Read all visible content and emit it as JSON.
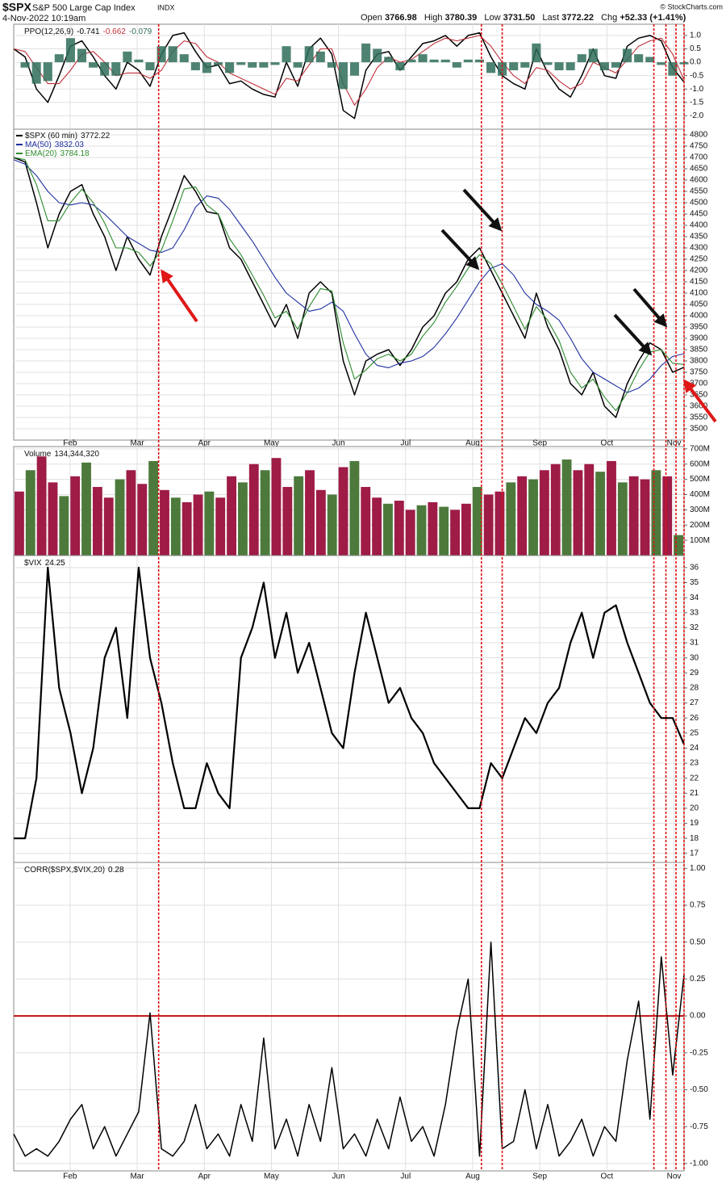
{
  "header": {
    "symbol": "$SPX",
    "name": "S&P 500 Large Cap Index",
    "exchange": "INDX",
    "datetime": "4-Nov-2022 10:19am",
    "quote": [
      {
        "label": "Open",
        "value": "3766.98"
      },
      {
        "label": "High",
        "value": "3780.39"
      },
      {
        "label": "Low",
        "value": "3731.50"
      },
      {
        "label": "Last",
        "value": "3772.22"
      },
      {
        "label": "Chg",
        "value": "+52.33 (+1.41%)"
      }
    ],
    "credit": "© StockCharts.com"
  },
  "markers": {
    "vlines": [
      3.32,
      8.13,
      8.44,
      10.7,
      10.88,
      11.03,
      11.15
    ],
    "color": "#e01010"
  },
  "chart_data": [
    {
      "type": "line",
      "title": "PPO(12,26,9)",
      "legend": "inline",
      "xlim": [
        1.16,
        11.15
      ],
      "ylim": [
        -2.5,
        1.42
      ],
      "yticks": [
        {
          "value": 1,
          "label": "1.0"
        },
        0.5,
        {
          "value": 0,
          "label": "0.0"
        },
        -0.5,
        {
          "value": -1,
          "label": "-1.0"
        },
        -1.5,
        {
          "value": -2,
          "label": "-2.0"
        }
      ],
      "series": [
        {
          "name": "PPO",
          "kind": "line",
          "color": "#000000",
          "values": [
            0.5,
            0.2,
            -1.0,
            -1.5,
            -0.5,
            0.6,
            0.8,
            0.2,
            -0.5,
            -1.0,
            0.0,
            -0.3,
            -0.9,
            0.3,
            1.0,
            1.1,
            0.4,
            -0.2,
            -0.1,
            -0.8,
            -0.7,
            -1.0,
            -1.2,
            -1.3,
            0.0,
            -0.9,
            0.5,
            0.9,
            0.3,
            -1.8,
            -2.1,
            -0.3,
            0.3,
            0.4,
            -0.3,
            0.2,
            0.7,
            0.8,
            1.0,
            0.6,
            1.0,
            1.1,
            0.2,
            -0.5,
            -0.8,
            -1.0,
            0.5,
            -0.4,
            -1.0,
            -1.3,
            -0.5,
            0.5,
            -0.5,
            -0.6,
            0.6,
            0.9,
            1.0,
            0.8,
            -0.2,
            -0.741
          ]
        },
        {
          "name": "Signal",
          "kind": "line",
          "color": "#c0303a",
          "values": [
            0.5,
            0.4,
            -0.2,
            -0.8,
            -0.8,
            -0.3,
            0.3,
            0.4,
            0.0,
            -0.5,
            -0.4,
            -0.4,
            -0.6,
            -0.3,
            0.4,
            0.8,
            0.7,
            0.2,
            0.0,
            -0.4,
            -0.6,
            -0.8,
            -1.0,
            -1.2,
            -0.6,
            -0.7,
            -0.1,
            0.5,
            0.5,
            -0.8,
            -1.6,
            -1.0,
            -0.2,
            0.2,
            0.0,
            0.1,
            0.4,
            0.7,
            0.9,
            0.8,
            0.9,
            1.0,
            0.6,
            0.0,
            -0.5,
            -0.8,
            -0.2,
            -0.3,
            -0.7,
            -1.0,
            -0.8,
            0.0,
            -0.2,
            -0.4,
            0.1,
            0.6,
            0.8,
            0.9,
            0.3,
            -0.662
          ]
        },
        {
          "name": "Histogram",
          "kind": "histogram",
          "color": "#2f6d5a",
          "values": [
            0.0,
            -0.2,
            -0.8,
            -0.7,
            0.3,
            0.9,
            0.5,
            -0.2,
            -0.5,
            -0.5,
            0.4,
            0.1,
            -0.3,
            0.6,
            0.6,
            0.3,
            -0.3,
            -0.4,
            -0.1,
            -0.4,
            -0.1,
            -0.2,
            -0.2,
            -0.1,
            0.6,
            -0.2,
            0.6,
            0.4,
            -0.2,
            -1.0,
            -0.5,
            0.7,
            0.5,
            0.2,
            -0.3,
            0.1,
            0.3,
            0.1,
            0.1,
            -0.2,
            0.1,
            0.1,
            -0.4,
            -0.5,
            -0.3,
            -0.2,
            0.7,
            -0.1,
            -0.3,
            -0.3,
            0.3,
            0.5,
            -0.3,
            -0.2,
            0.5,
            0.3,
            0.2,
            -0.1,
            -0.5,
            -0.079
          ]
        }
      ]
    },
    {
      "type": "line",
      "legend": "stacked",
      "xlim": [
        1.16,
        11.15
      ],
      "ylim": [
        3450,
        4825
      ],
      "xticks": [
        {
          "value": 2,
          "label": "Feb"
        },
        {
          "value": 3,
          "label": "Mar"
        },
        {
          "value": 4,
          "label": "Apr"
        },
        {
          "value": 5,
          "label": "May"
        },
        {
          "value": 6,
          "label": "Jun"
        },
        {
          "value": 7,
          "label": "Jul"
        },
        {
          "value": 8,
          "label": "Aug"
        },
        {
          "value": 9,
          "label": "Sep"
        },
        {
          "value": 10,
          "label": "Oct"
        },
        {
          "value": 11,
          "label": "Nov"
        }
      ],
      "yticks": [
        3500,
        3550,
        3600,
        3650,
        3700,
        3750,
        3800,
        3850,
        3900,
        3950,
        4000,
        4050,
        4100,
        4150,
        4200,
        4250,
        4300,
        4350,
        4400,
        4450,
        4500,
        4550,
        4600,
        4650,
        4700,
        4750,
        4800
      ],
      "series": [
        {
          "name": "$SPX (60 min)",
          "kind": "line",
          "color": "#000000",
          "values": [
            4700,
            4680,
            4500,
            4300,
            4450,
            4550,
            4580,
            4450,
            4350,
            4200,
            4350,
            4250,
            4180,
            4350,
            4480,
            4620,
            4550,
            4460,
            4450,
            4300,
            4250,
            4150,
            4050,
            3950,
            4050,
            3900,
            4100,
            4150,
            4100,
            3800,
            3650,
            3800,
            3830,
            3850,
            3780,
            3850,
            3950,
            4000,
            4100,
            4150,
            4250,
            4300,
            4200,
            4100,
            4000,
            3900,
            4100,
            3950,
            3850,
            3700,
            3650,
            3750,
            3600,
            3550,
            3700,
            3800,
            3880,
            3850,
            3750,
            3772.22
          ]
        },
        {
          "name": "MA(50)",
          "kind": "line",
          "color": "#1f2fa0",
          "values": [
            4690,
            4670,
            4620,
            4550,
            4500,
            4490,
            4500,
            4490,
            4450,
            4400,
            4350,
            4320,
            4290,
            4280,
            4300,
            4380,
            4480,
            4530,
            4520,
            4470,
            4400,
            4330,
            4250,
            4170,
            4100,
            4060,
            4020,
            4030,
            4060,
            4020,
            3920,
            3830,
            3780,
            3770,
            3790,
            3800,
            3820,
            3860,
            3920,
            3990,
            4070,
            4150,
            4210,
            4230,
            4180,
            4100,
            4050,
            4020,
            3980,
            3900,
            3810,
            3750,
            3720,
            3690,
            3660,
            3680,
            3720,
            3780,
            3820,
            3832.03
          ]
        },
        {
          "name": "EMA(20)",
          "kind": "line",
          "color": "#2e8b2e",
          "values": [
            4700,
            4690,
            4580,
            4420,
            4420,
            4500,
            4560,
            4500,
            4410,
            4300,
            4300,
            4280,
            4220,
            4290,
            4420,
            4560,
            4570,
            4490,
            4450,
            4340,
            4270,
            4180,
            4090,
            3990,
            4020,
            3940,
            4040,
            4120,
            4110,
            3880,
            3720,
            3760,
            3810,
            3830,
            3800,
            3830,
            3910,
            3970,
            4060,
            4130,
            4210,
            4270,
            4230,
            4140,
            4040,
            3940,
            4040,
            3980,
            3890,
            3750,
            3680,
            3720,
            3640,
            3580,
            3660,
            3760,
            3840,
            3850,
            3790,
            3784.18
          ]
        }
      ]
    },
    {
      "type": "bar",
      "title": "Volume",
      "legend": "inline",
      "xlim": [
        1.16,
        11.15
      ],
      "ylim": [
        0,
        715000000
      ],
      "yticks": [
        {
          "value": 100000000,
          "label": "100M"
        },
        {
          "value": 200000000,
          "label": "200M"
        },
        {
          "value": 300000000,
          "label": "300M"
        },
        {
          "value": 400000000,
          "label": "400M"
        },
        {
          "value": 500000000,
          "label": "500M"
        },
        {
          "value": 600000000,
          "label": "600M"
        },
        {
          "value": 700000000,
          "label": "700M"
        }
      ],
      "values": [
        420000000,
        560000000,
        650000000,
        480000000,
        390000000,
        520000000,
        610000000,
        450000000,
        380000000,
        500000000,
        560000000,
        470000000,
        620000000,
        430000000,
        380000000,
        350000000,
        400000000,
        420000000,
        380000000,
        520000000,
        480000000,
        600000000,
        560000000,
        640000000,
        450000000,
        520000000,
        560000000,
        430000000,
        400000000,
        580000000,
        620000000,
        450000000,
        380000000,
        340000000,
        360000000,
        300000000,
        330000000,
        350000000,
        320000000,
        300000000,
        340000000,
        450000000,
        400000000,
        420000000,
        480000000,
        520000000,
        500000000,
        560000000,
        600000000,
        630000000,
        560000000,
        600000000,
        550000000,
        620000000,
        480000000,
        520000000,
        500000000,
        560000000,
        520000000,
        134344320
      ],
      "value_labels": {
        "59": "134,344,320"
      },
      "colors": [
        "#9e1c46",
        "#4d7a3c",
        "#9e1c46",
        "#9e1c46",
        "#4d7a3c",
        "#9e1c46",
        "#4d7a3c",
        "#9e1c46",
        "#9e1c46",
        "#4d7a3c",
        "#9e1c46",
        "#9e1c46",
        "#4d7a3c",
        "#9e1c46",
        "#4d7a3c",
        "#9e1c46",
        "#9e1c46",
        "#4d7a3c",
        "#9e1c46",
        "#9e1c46",
        "#4d7a3c",
        "#9e1c46",
        "#4d7a3c",
        "#9e1c46",
        "#9e1c46",
        "#4d7a3c",
        "#9e1c46",
        "#9e1c46",
        "#4d7a3c",
        "#9e1c46",
        "#4d7a3c",
        "#9e1c46",
        "#9e1c46",
        "#4d7a3c",
        "#9e1c46",
        "#9e1c46",
        "#4d7a3c",
        "#9e1c46",
        "#4d7a3c",
        "#9e1c46",
        "#9e1c46",
        "#4d7a3c",
        "#9e1c46",
        "#9e1c46",
        "#4d7a3c",
        "#9e1c46",
        "#4d7a3c",
        "#9e1c46",
        "#9e1c46",
        "#4d7a3c",
        "#9e1c46",
        "#9e1c46",
        "#4d7a3c",
        "#9e1c46",
        "#4d7a3c",
        "#9e1c46",
        "#9e1c46",
        "#4d7a3c",
        "#9e1c46",
        "#4d7a3c"
      ]
    },
    {
      "type": "line",
      "title": "$VIX",
      "legend": "inline",
      "xlim": [
        1.16,
        11.15
      ],
      "ylim": [
        16.4,
        36.8
      ],
      "yticks": [
        17,
        18,
        19,
        20,
        21,
        22,
        23,
        24,
        25,
        26,
        27,
        28,
        29,
        30,
        31,
        32,
        33,
        34,
        35,
        36
      ],
      "series": [
        {
          "name": "$VIX",
          "kind": "line",
          "color": "#000000",
          "values": [
            18,
            18,
            22,
            36,
            28,
            25,
            21,
            24,
            30,
            32,
            26,
            36,
            30,
            27,
            23,
            20,
            20,
            23,
            21,
            20,
            30,
            32,
            35,
            30,
            33,
            29,
            31,
            28,
            25,
            24,
            29,
            33,
            30,
            27,
            28,
            26,
            25,
            23,
            22,
            21,
            20,
            20,
            23,
            22,
            24,
            26,
            25,
            27,
            28,
            31,
            33,
            30,
            33,
            33.5,
            31,
            29,
            27,
            26,
            26,
            24.25
          ]
        }
      ]
    },
    {
      "type": "line",
      "title": "CORR($SPX,$VIX,20)",
      "legend": "inline",
      "xlim": [
        1.16,
        11.15
      ],
      "ylim": [
        -1.05,
        1.04
      ],
      "xticks": [
        {
          "value": 2,
          "label": "Feb"
        },
        {
          "value": 3,
          "label": "Mar"
        },
        {
          "value": 4,
          "label": "Apr"
        },
        {
          "value": 5,
          "label": "May"
        },
        {
          "value": 6,
          "label": "Jun"
        },
        {
          "value": 7,
          "label": "Jul"
        },
        {
          "value": 8,
          "label": "Aug"
        },
        {
          "value": 9,
          "label": "Sep"
        },
        {
          "value": 10,
          "label": "Oct"
        },
        {
          "value": 11,
          "label": "Nov"
        }
      ],
      "yticks": [
        {
          "value": 1,
          "label": "1.00"
        },
        0.75,
        {
          "value": 0.5,
          "label": "0.50"
        },
        0.25,
        {
          "value": 0,
          "label": "0.00"
        },
        -0.25,
        {
          "value": -0.5,
          "label": "-0.50"
        },
        -0.75,
        {
          "value": -1,
          "label": "-1.00"
        }
      ],
      "hline": 0,
      "hline_color": "#c01010",
      "series": [
        {
          "name": "CORR",
          "kind": "line",
          "color": "#000000",
          "values": [
            -0.8,
            -0.95,
            -0.9,
            -0.95,
            -0.85,
            -0.7,
            -0.6,
            -0.9,
            -0.75,
            -0.95,
            -0.8,
            -0.65,
            0.02,
            -0.9,
            -0.95,
            -0.85,
            -0.6,
            -0.9,
            -0.8,
            -0.95,
            -0.6,
            -0.85,
            -0.15,
            -0.9,
            -0.7,
            -0.95,
            -0.6,
            -0.85,
            -0.35,
            -0.9,
            -0.8,
            -0.95,
            -0.7,
            -0.9,
            -0.55,
            -0.85,
            -0.75,
            -0.95,
            -0.6,
            -0.1,
            0.25,
            -0.95,
            0.5,
            -0.9,
            -0.85,
            -0.5,
            -0.9,
            -0.6,
            -0.95,
            -0.85,
            -0.7,
            -0.95,
            -0.75,
            -0.85,
            -0.3,
            0.1,
            -0.7,
            0.4,
            -0.4,
            0.28
          ]
        }
      ]
    }
  ]
}
